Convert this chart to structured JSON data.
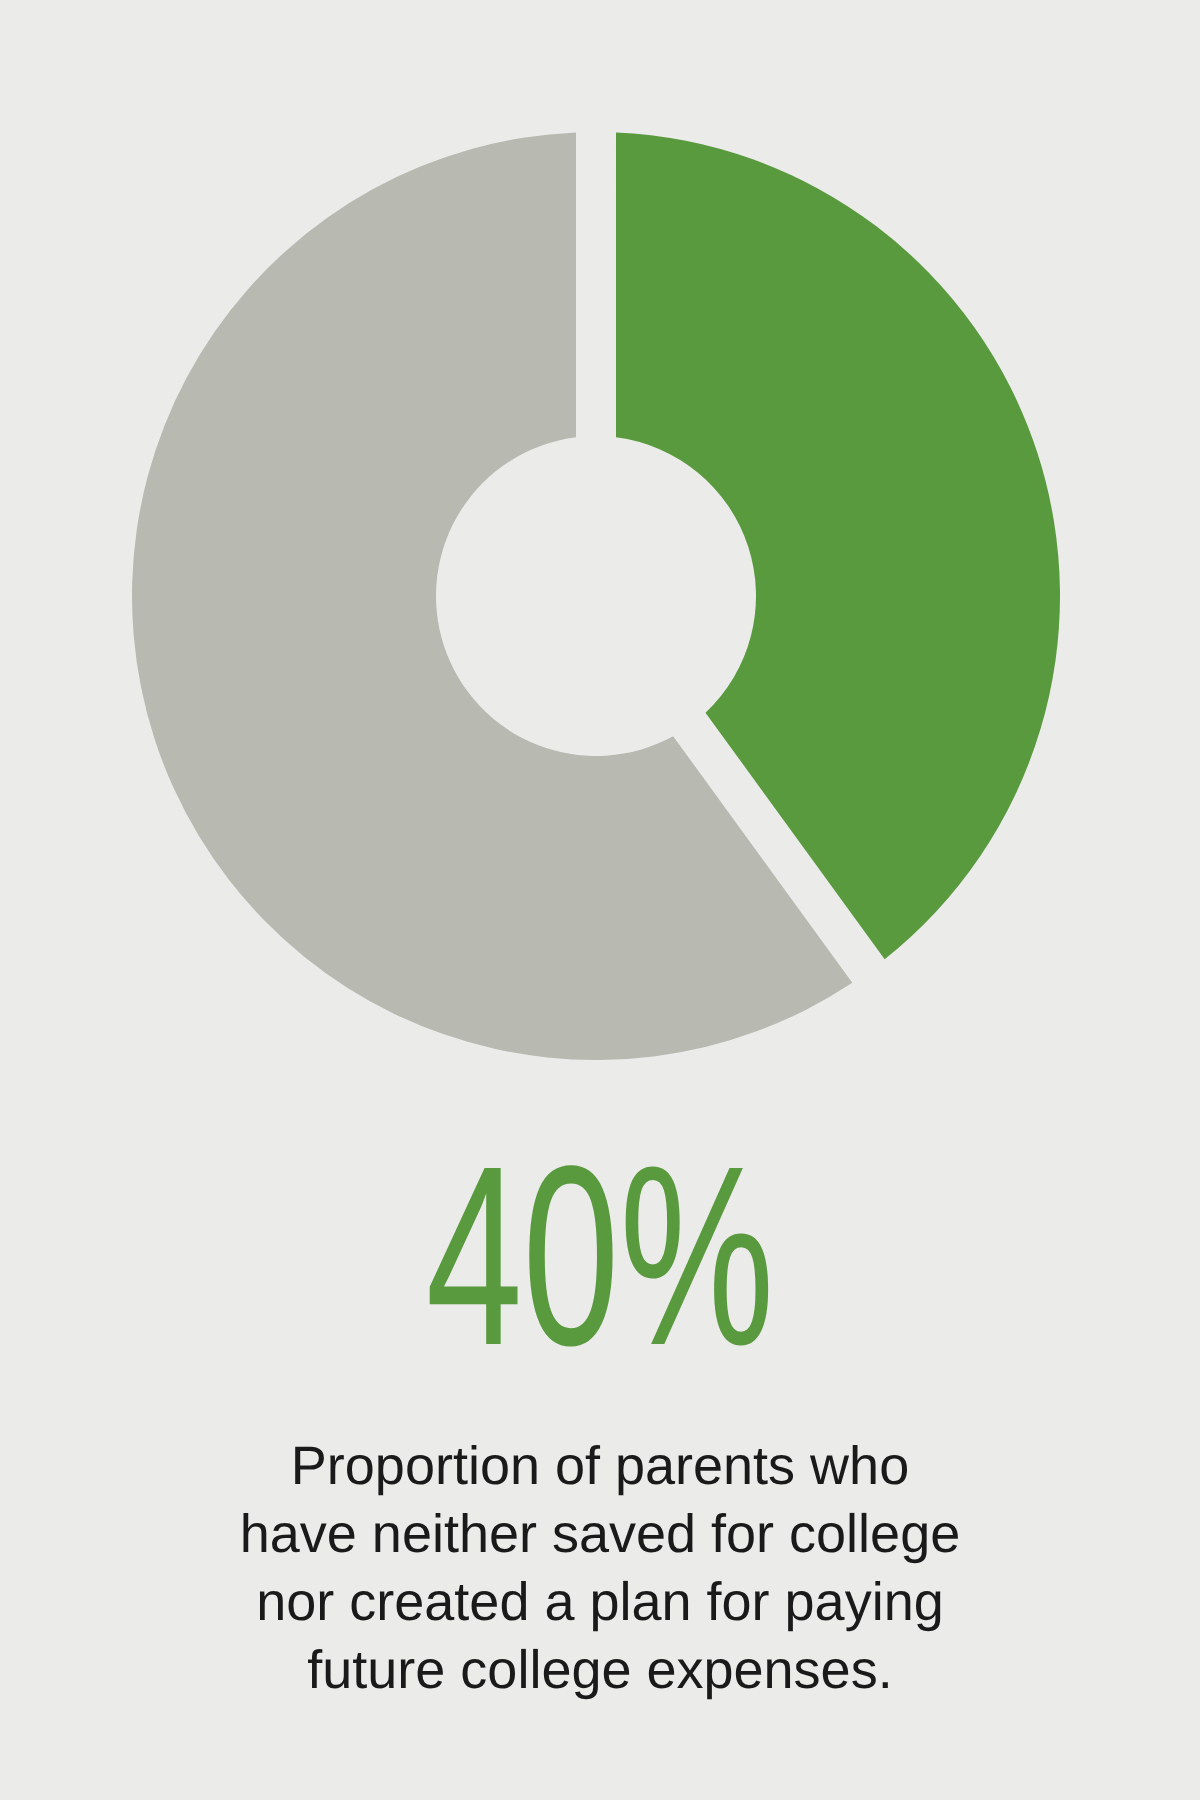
{
  "chart_data": {
    "type": "donut",
    "title": "40%",
    "categories": [
      null,
      null
    ],
    "values": [
      40,
      60
    ],
    "colors": [
      "#5a9a3e",
      "#b8b9b0"
    ],
    "annotations": [
      "Proportion of parents who\nhave neither saved for college\nnor created a plan for paying\nfuture college expenses."
    ]
  }
}
